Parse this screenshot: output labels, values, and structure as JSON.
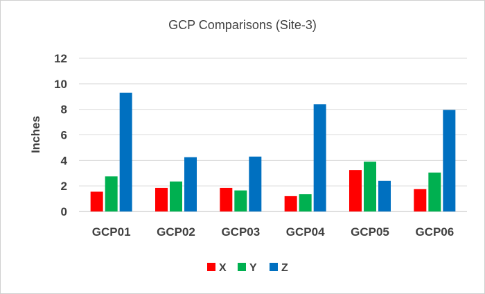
{
  "chart_data": {
    "type": "bar",
    "title": "GCP Comparisons (Site-3)",
    "xlabel": "",
    "ylabel": "Inches",
    "ylim": [
      0,
      12
    ],
    "yticks": [
      0,
      2,
      4,
      6,
      8,
      10,
      12
    ],
    "grid": true,
    "legend_position": "bottom",
    "categories": [
      "GCP01",
      "GCP02",
      "GCP03",
      "GCP04",
      "GCP05",
      "GCP06"
    ],
    "series": [
      {
        "name": "X",
        "color": "#ff0000",
        "values": [
          1.55,
          1.85,
          1.85,
          1.2,
          3.25,
          1.75
        ]
      },
      {
        "name": "Y",
        "color": "#00b050",
        "values": [
          2.75,
          2.35,
          1.65,
          1.35,
          3.9,
          3.05
        ]
      },
      {
        "name": "Z",
        "color": "#0070c0",
        "values": [
          9.3,
          4.25,
          4.3,
          8.4,
          2.4,
          7.95
        ]
      }
    ]
  }
}
